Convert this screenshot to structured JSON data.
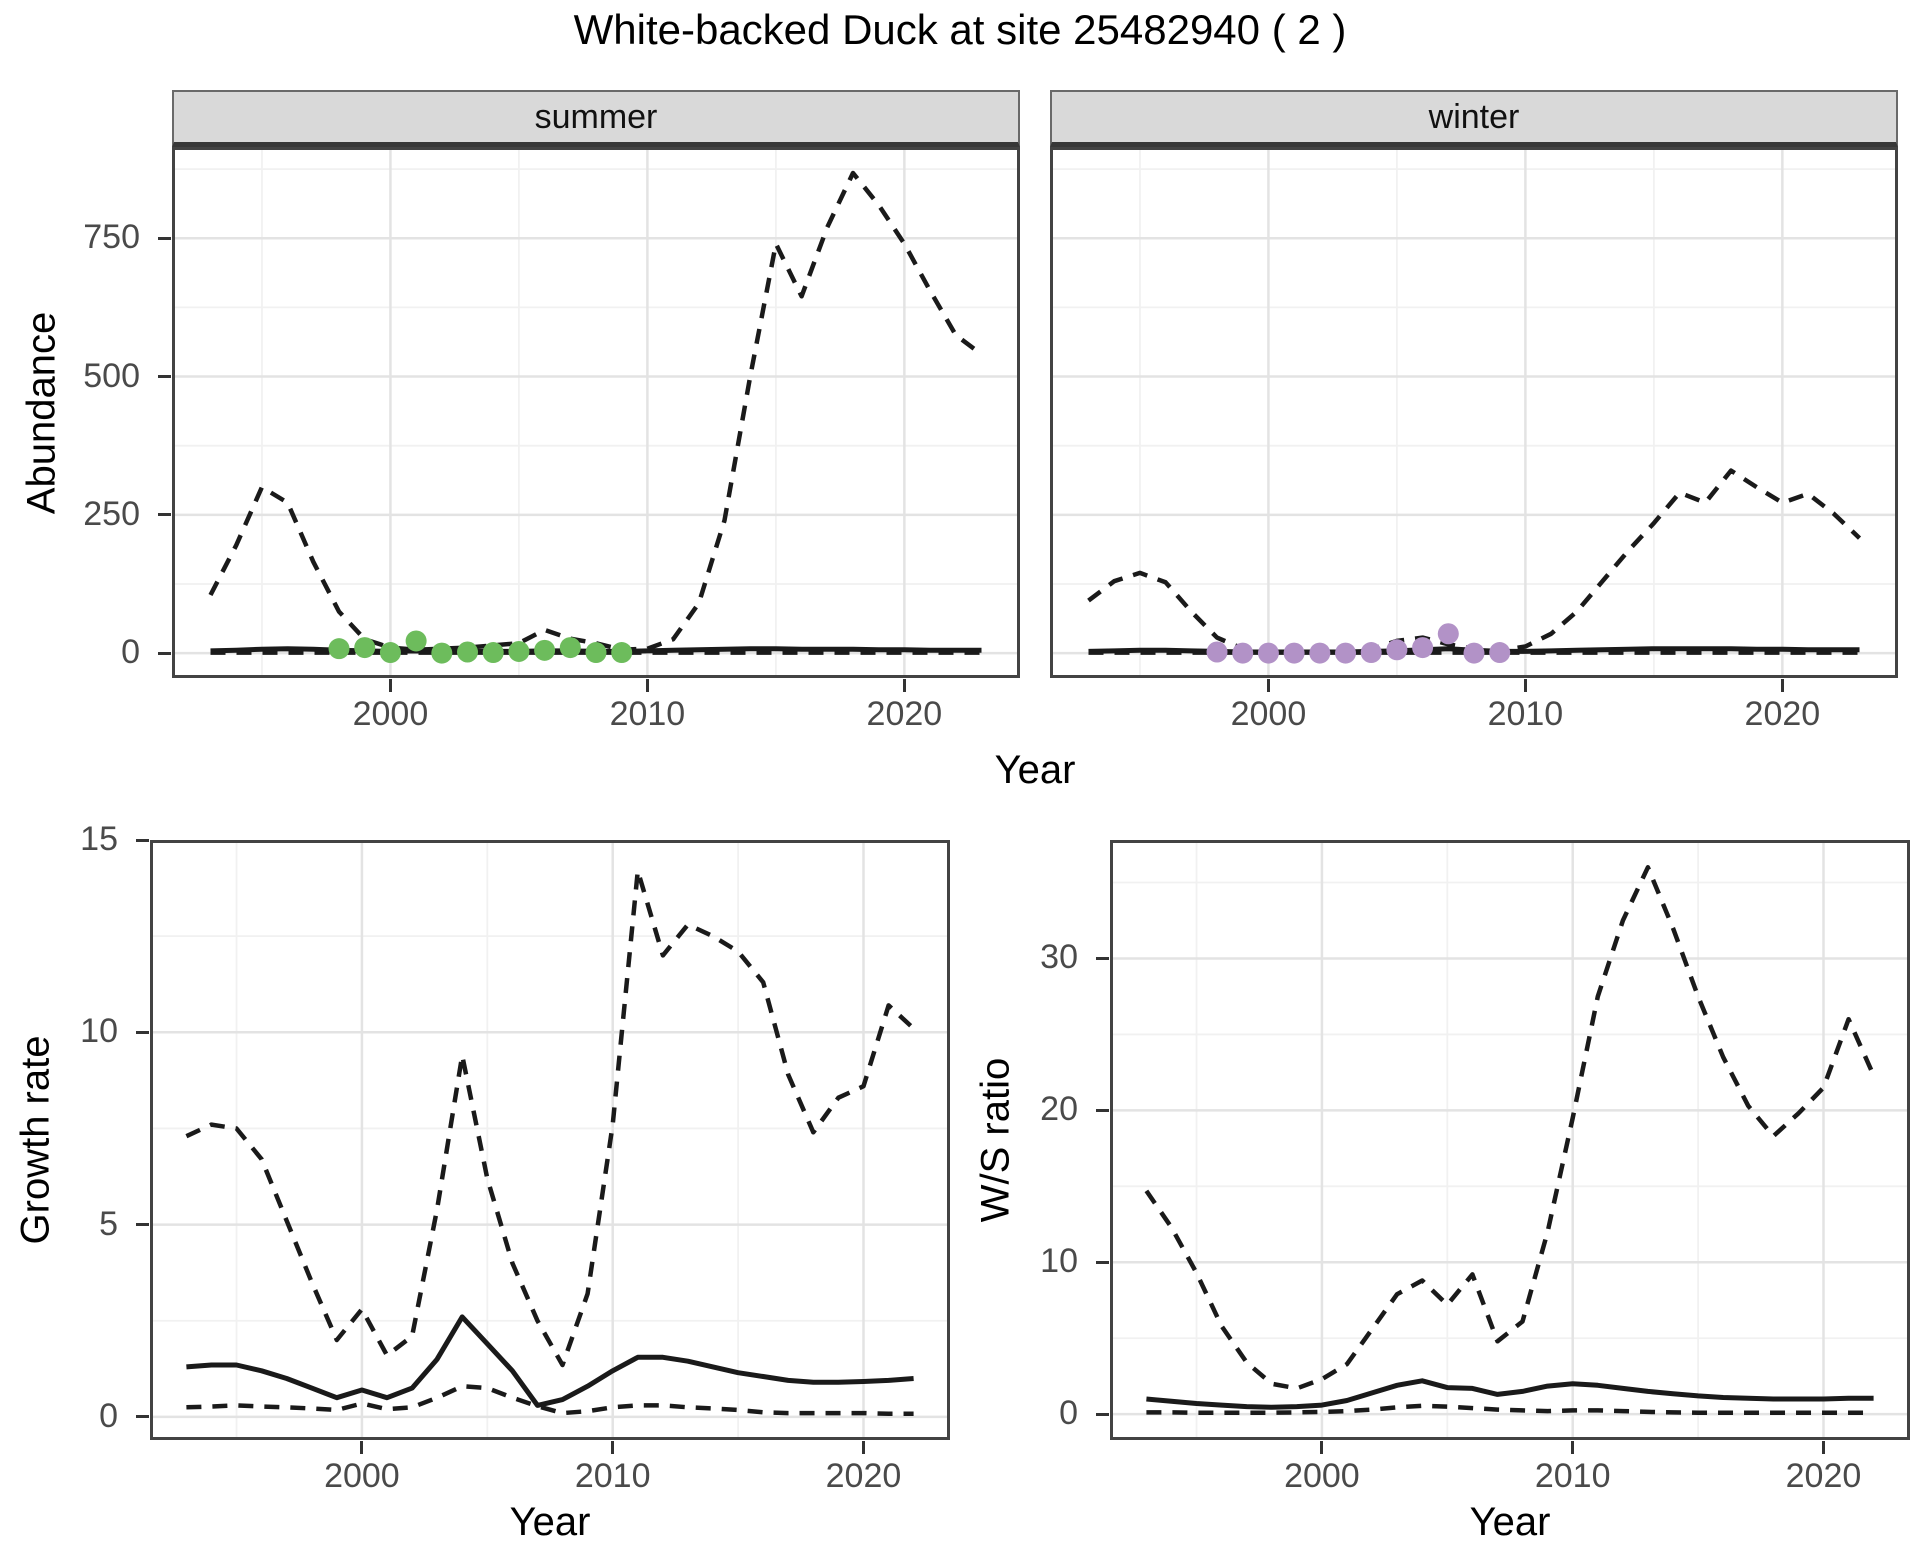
{
  "title": "White-backed Duck at site 25482940 ( 2 )",
  "facets": {
    "summer": "summer",
    "winter": "winter"
  },
  "axis_labels": {
    "abundance": "Abundance",
    "year": "Year",
    "growth_rate": "Growth rate",
    "ws_ratio": "W/S ratio"
  },
  "colors": {
    "observed_summer": "#6DBC5C",
    "observed_winter": "#B292C7",
    "line": "#1A1A1A",
    "grid_major": "#E3E3E3",
    "grid_minor": "#F1F1F1",
    "strip_bg": "#D9D9D9",
    "tick_text": "#4A4A4A"
  },
  "chart_data": [
    {
      "id": "abundance-summer",
      "type": "line",
      "facet": "summer",
      "xlabel": "Year",
      "ylabel": "Abundance",
      "x": [
        1993,
        1994,
        1995,
        1996,
        1997,
        1998,
        1999,
        2000,
        2001,
        2002,
        2003,
        2004,
        2005,
        2006,
        2007,
        2008,
        2009,
        2010,
        2011,
        2012,
        2013,
        2014,
        2015,
        2016,
        2017,
        2018,
        2019,
        2020,
        2021,
        2022,
        2023
      ],
      "xlim": [
        1991.5,
        2024.5
      ],
      "ylim": [
        -45,
        915
      ],
      "xticks": [
        2000,
        2010,
        2020
      ],
      "yticks": [
        0,
        250,
        500,
        750
      ],
      "xminor": [
        1995,
        2005,
        2015
      ],
      "yminor": [
        125,
        375,
        625,
        875
      ],
      "series": [
        {
          "name": "upper-ci",
          "style": "dashed",
          "values": [
            105,
            195,
            300,
            272,
            165,
            75,
            25,
            10,
            6,
            8,
            10,
            14,
            18,
            42,
            26,
            18,
            6,
            8,
            25,
            90,
            240,
            500,
            740,
            645,
            770,
            868,
            810,
            740,
            655,
            575,
            540
          ]
        },
        {
          "name": "median",
          "style": "solid",
          "values": [
            4,
            5,
            7,
            8,
            7,
            5,
            4,
            3,
            4,
            3,
            3,
            3,
            3,
            4,
            4,
            3,
            3,
            4,
            5,
            6,
            7,
            8,
            8,
            7,
            7,
            7,
            6,
            6,
            5,
            5,
            5
          ]
        },
        {
          "name": "lower-ci",
          "style": "dashed",
          "values": [
            1,
            1,
            1,
            1,
            1,
            1,
            1,
            1,
            1,
            1,
            1,
            1,
            1,
            1,
            1,
            1,
            1,
            1,
            1,
            1,
            1,
            1,
            1,
            1,
            1,
            1,
            1,
            1,
            1,
            1,
            1
          ]
        },
        {
          "name": "observed",
          "style": "points",
          "color": "#6DBC5C",
          "x": [
            1998,
            1999,
            2000,
            2001,
            2002,
            2003,
            2004,
            2005,
            2006,
            2007,
            2008,
            2009
          ],
          "values": [
            8,
            10,
            1,
            22,
            0,
            2,
            1,
            3,
            5,
            10,
            1,
            1
          ]
        }
      ]
    },
    {
      "id": "abundance-winter",
      "type": "line",
      "facet": "winter",
      "xlabel": "Year",
      "ylabel": "Abundance",
      "x": [
        1993,
        1994,
        1995,
        1996,
        1997,
        1998,
        1999,
        2000,
        2001,
        2002,
        2003,
        2004,
        2005,
        2006,
        2007,
        2008,
        2009,
        2010,
        2011,
        2012,
        2013,
        2014,
        2015,
        2016,
        2017,
        2018,
        2019,
        2020,
        2021,
        2022,
        2023
      ],
      "xlim": [
        1991.5,
        2024.5
      ],
      "ylim": [
        -45,
        915
      ],
      "xticks": [
        2000,
        2010,
        2020
      ],
      "yticks": [
        0,
        250,
        500,
        750
      ],
      "xminor": [
        1995,
        2005,
        2015
      ],
      "yminor": [
        125,
        375,
        625,
        875
      ],
      "series": [
        {
          "name": "upper-ci",
          "style": "dashed",
          "values": [
            95,
            130,
            145,
            128,
            75,
            28,
            8,
            5,
            4,
            4,
            5,
            7,
            22,
            28,
            16,
            8,
            5,
            12,
            35,
            75,
            130,
            185,
            235,
            290,
            272,
            330,
            300,
            272,
            288,
            252,
            208
          ]
        },
        {
          "name": "median",
          "style": "solid",
          "values": [
            3,
            4,
            5,
            5,
            4,
            3,
            2,
            2,
            2,
            2,
            2,
            3,
            4,
            6,
            8,
            5,
            3,
            3,
            4,
            5,
            6,
            7,
            8,
            8,
            8,
            8,
            7,
            7,
            6,
            6,
            6
          ]
        },
        {
          "name": "lower-ci",
          "style": "dashed",
          "values": [
            1,
            1,
            1,
            1,
            1,
            1,
            1,
            1,
            1,
            1,
            1,
            1,
            1,
            1,
            1,
            1,
            1,
            1,
            1,
            1,
            1,
            1,
            1,
            1,
            1,
            1,
            1,
            1,
            1,
            1,
            1
          ]
        },
        {
          "name": "observed",
          "style": "points",
          "color": "#B292C7",
          "x": [
            1998,
            1999,
            2000,
            2001,
            2002,
            2003,
            2004,
            2005,
            2006,
            2007,
            2008,
            2009
          ],
          "values": [
            2,
            0,
            0,
            0,
            0,
            0,
            1,
            6,
            10,
            35,
            0,
            1
          ]
        }
      ]
    },
    {
      "id": "growth-rate",
      "type": "line",
      "xlabel": "Year",
      "ylabel": "Growth rate",
      "x": [
        1993,
        1994,
        1995,
        1996,
        1997,
        1998,
        1999,
        2000,
        2001,
        2002,
        2003,
        2004,
        2005,
        2006,
        2007,
        2008,
        2009,
        2010,
        2011,
        2012,
        2013,
        2014,
        2015,
        2016,
        2017,
        2018,
        2019,
        2020,
        2021,
        2022
      ],
      "xlim": [
        1991.55,
        2023.45
      ],
      "ylim": [
        -0.6,
        15.0
      ],
      "xticks": [
        2000,
        2010,
        2020
      ],
      "yticks": [
        0,
        5,
        10,
        15
      ],
      "xminor": [
        1995,
        2005,
        2015
      ],
      "yminor": [
        2.5,
        7.5,
        12.5
      ],
      "series": [
        {
          "name": "upper-ci",
          "style": "dashed",
          "values": [
            7.3,
            7.6,
            7.5,
            6.7,
            5.1,
            3.5,
            2.0,
            2.8,
            1.6,
            2.1,
            5.4,
            9.4,
            6.2,
            4.0,
            2.5,
            1.35,
            3.2,
            7.6,
            14.2,
            12.0,
            12.8,
            12.5,
            12.1,
            11.3,
            8.9,
            7.4,
            8.3,
            8.6,
            10.7,
            10.1
          ]
        },
        {
          "name": "median",
          "style": "solid",
          "values": [
            1.3,
            1.35,
            1.35,
            1.2,
            1.0,
            0.75,
            0.5,
            0.7,
            0.5,
            0.75,
            1.5,
            2.6,
            1.9,
            1.2,
            0.3,
            0.45,
            0.8,
            1.2,
            1.55,
            1.55,
            1.45,
            1.3,
            1.15,
            1.05,
            0.95,
            0.9,
            0.9,
            0.92,
            0.95,
            1.0
          ]
        },
        {
          "name": "lower-ci",
          "style": "dashed",
          "values": [
            0.25,
            0.27,
            0.3,
            0.27,
            0.25,
            0.22,
            0.18,
            0.35,
            0.2,
            0.25,
            0.5,
            0.8,
            0.75,
            0.5,
            0.28,
            0.1,
            0.15,
            0.25,
            0.3,
            0.3,
            0.25,
            0.22,
            0.18,
            0.12,
            0.1,
            0.1,
            0.1,
            0.1,
            0.08,
            0.08
          ]
        }
      ]
    },
    {
      "id": "ws-ratio",
      "type": "line",
      "xlabel": "Year",
      "ylabel": "W/S ratio",
      "x": [
        1993,
        1994,
        1995,
        1996,
        1997,
        1998,
        1999,
        2000,
        2001,
        2002,
        2003,
        2004,
        2005,
        2006,
        2007,
        2008,
        2009,
        2010,
        2011,
        2012,
        2013,
        2014,
        2015,
        2016,
        2017,
        2018,
        2019,
        2020,
        2021,
        2022
      ],
      "xlim": [
        1991.55,
        2023.45
      ],
      "ylim": [
        -1.7,
        37.8
      ],
      "xticks": [
        2000,
        2010,
        2020
      ],
      "yticks": [
        0,
        10,
        20,
        30
      ],
      "xminor": [
        1995,
        2005,
        2015
      ],
      "yminor": [
        5,
        15,
        25,
        35
      ],
      "series": [
        {
          "name": "upper-ci",
          "style": "dashed",
          "values": [
            14.7,
            12.3,
            9.3,
            5.8,
            3.4,
            2.0,
            1.7,
            2.3,
            3.3,
            5.6,
            7.9,
            8.8,
            7.2,
            9.2,
            4.8,
            6.1,
            12.0,
            19.5,
            27.5,
            32.5,
            36.0,
            32.0,
            27.5,
            23.5,
            20.3,
            18.3,
            19.8,
            21.5,
            26.0,
            22.3
          ]
        },
        {
          "name": "median",
          "style": "solid",
          "values": [
            1.0,
            0.85,
            0.7,
            0.6,
            0.5,
            0.45,
            0.5,
            0.6,
            0.9,
            1.4,
            1.9,
            2.2,
            1.75,
            1.7,
            1.3,
            1.5,
            1.85,
            2.0,
            1.9,
            1.7,
            1.5,
            1.35,
            1.2,
            1.1,
            1.05,
            1.0,
            1.0,
            1.0,
            1.05,
            1.05
          ]
        },
        {
          "name": "lower-ci",
          "style": "dashed",
          "values": [
            0.12,
            0.12,
            0.1,
            0.1,
            0.1,
            0.1,
            0.12,
            0.15,
            0.2,
            0.3,
            0.45,
            0.55,
            0.5,
            0.4,
            0.3,
            0.25,
            0.2,
            0.25,
            0.25,
            0.2,
            0.15,
            0.12,
            0.1,
            0.1,
            0.1,
            0.1,
            0.1,
            0.1,
            0.1,
            0.1
          ]
        }
      ]
    }
  ]
}
